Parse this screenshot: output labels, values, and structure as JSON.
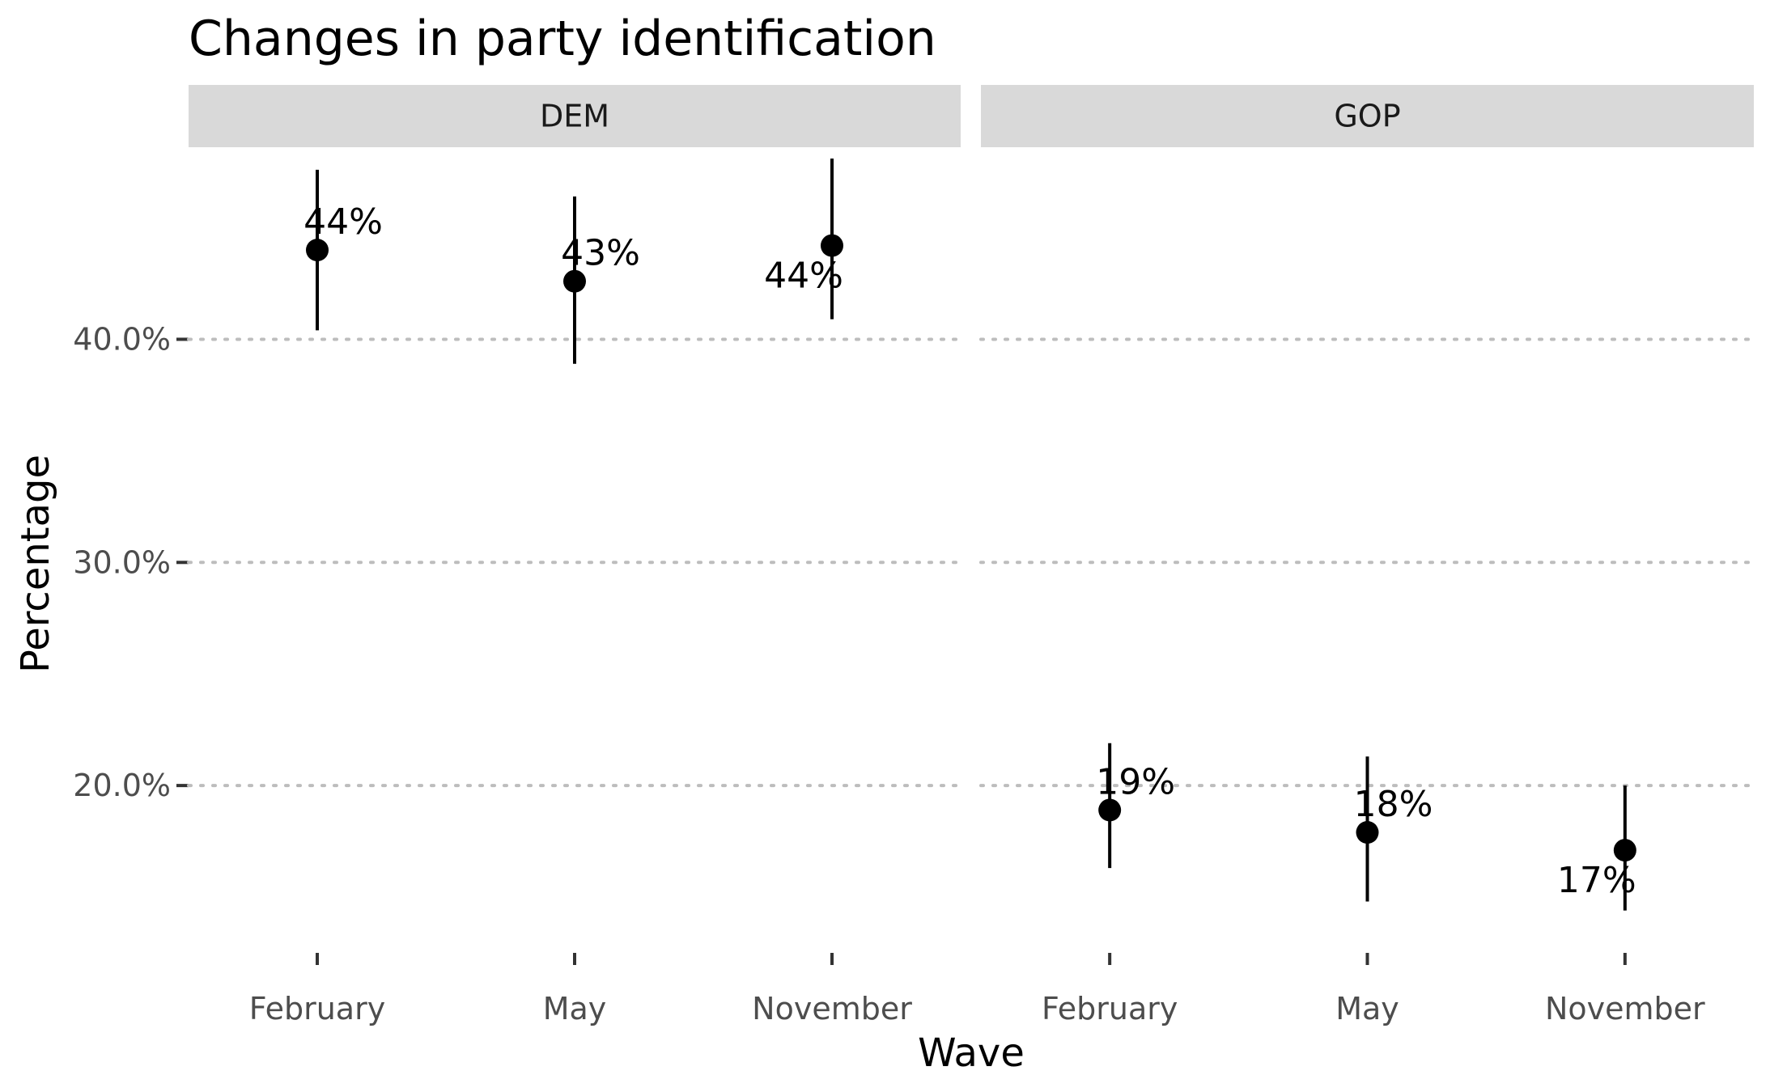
{
  "chart_data": {
    "type": "scatter",
    "title": "Changes in party identification",
    "xlabel": "Wave",
    "ylabel": "Percentage",
    "y_tick_labels": [
      "20.0%",
      "30.0%",
      "40.0%"
    ],
    "y_ticks": [
      20,
      30,
      40
    ],
    "ylim": [
      12.5,
      48.5
    ],
    "grid": "major y, dotted",
    "categories": [
      "February",
      "May",
      "November"
    ],
    "panels": [
      {
        "name": "DEM",
        "points": [
          {
            "x": "February",
            "y": 44.0,
            "lower": 40.4,
            "upper": 47.6,
            "label": "44%",
            "label_pos": "above"
          },
          {
            "x": "May",
            "y": 42.6,
            "lower": 38.9,
            "upper": 46.4,
            "label": "43%",
            "label_pos": "above"
          },
          {
            "x": "November",
            "y": 44.2,
            "lower": 40.9,
            "upper": 48.1,
            "label": "44%",
            "label_pos": "below"
          }
        ]
      },
      {
        "name": "GOP",
        "points": [
          {
            "x": "February",
            "y": 18.9,
            "lower": 16.3,
            "upper": 21.9,
            "label": "19%",
            "label_pos": "above"
          },
          {
            "x": "May",
            "y": 17.9,
            "lower": 14.8,
            "upper": 21.3,
            "label": "18%",
            "label_pos": "above"
          },
          {
            "x": "November",
            "y": 17.1,
            "lower": 14.4,
            "upper": 20.0,
            "label": "17%",
            "label_pos": "below"
          }
        ]
      }
    ]
  }
}
